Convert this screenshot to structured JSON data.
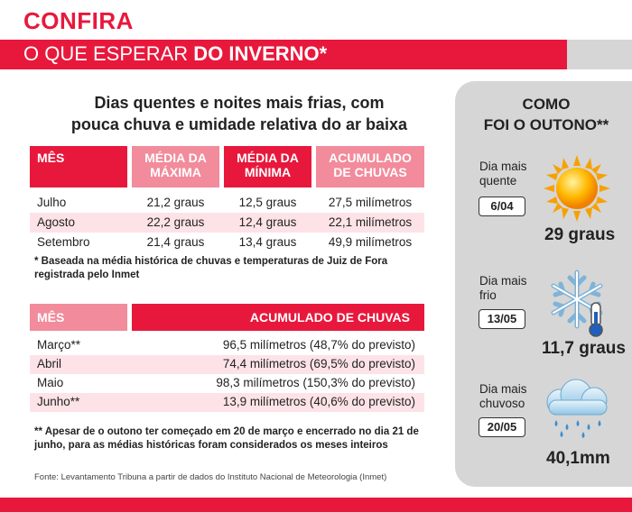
{
  "kicker": "CONFIRA",
  "banner": {
    "prefix": "O QUE ESPERAR ",
    "bold": "DO INVERNO*"
  },
  "headline": {
    "line1": "Dias quentes e noites mais frias, com",
    "line2": "pouca chuva e umidade relativa do ar baixa"
  },
  "table1": {
    "headers": {
      "mes": "MÊS",
      "max_1": "MÉDIA DA",
      "max_2": "MÁXIMA",
      "min_1": "MÉDIA DA",
      "min_2": "MÍNIMA",
      "acc_1": "ACUMULADO",
      "acc_2": "DE CHUVAS"
    },
    "rows": [
      {
        "mes": "Julho",
        "max": "21,2 graus",
        "min": "12,5 graus",
        "acc": "27,5 milímetros"
      },
      {
        "mes": "Agosto",
        "max": "22,2 graus",
        "min": "12,4 graus",
        "acc": "22,1 milímetros"
      },
      {
        "mes": "Setembro",
        "max": "21,4 graus",
        "min": "13,4 graus",
        "acc": "49,9 milímetros"
      }
    ]
  },
  "note1": "* Baseada na média histórica de chuvas e temperaturas de Juiz de Fora registrada pelo Inmet",
  "table2": {
    "headers": {
      "mes": "MÊS",
      "acc": "ACUMULADO DE CHUVAS"
    },
    "rows": [
      {
        "mes": "Março**",
        "acc": "96,5 milímetros (48,7% do previsto)"
      },
      {
        "mes": "Abril",
        "acc": "74,4 milímetros (69,5% do previsto)"
      },
      {
        "mes": "Maio",
        "acc": "98,3 milímetros (150,3% do previsto)"
      },
      {
        "mes": "Junho**",
        "acc": "13,9 milímetros (40,6% do previsto)"
      }
    ]
  },
  "note2": "** Apesar de o outono ter começado em 20 de março e encerrado no dia 21 de junho, para as médias históricas foram considerados os meses inteiros",
  "source": "Fonte: Levantamento Tribuna a partir de dados do Instituto Nacional de Meteorologia (Inmet)",
  "panel": {
    "title_1": "COMO",
    "title_2": "FOI O OUTONO**",
    "hot": {
      "label_1": "Dia mais",
      "label_2": "quente",
      "date": "6/04",
      "value": "29 graus",
      "icon": "sun-icon"
    },
    "cold": {
      "label_1": "Dia mais",
      "label_2": "frio",
      "date": "13/05",
      "value": "11,7 graus",
      "icon": "snowflake-thermometer-icon"
    },
    "rainy": {
      "label_1": "Dia mais",
      "label_2": "chuvoso",
      "date": "20/05",
      "value": "40,1mm",
      "icon": "rain-cloud-icon"
    }
  },
  "colors": {
    "accent": "#e8183c",
    "accent_light": "#f28b9b",
    "row_shade": "#fde3e7",
    "panel": "#d6d6d6"
  }
}
